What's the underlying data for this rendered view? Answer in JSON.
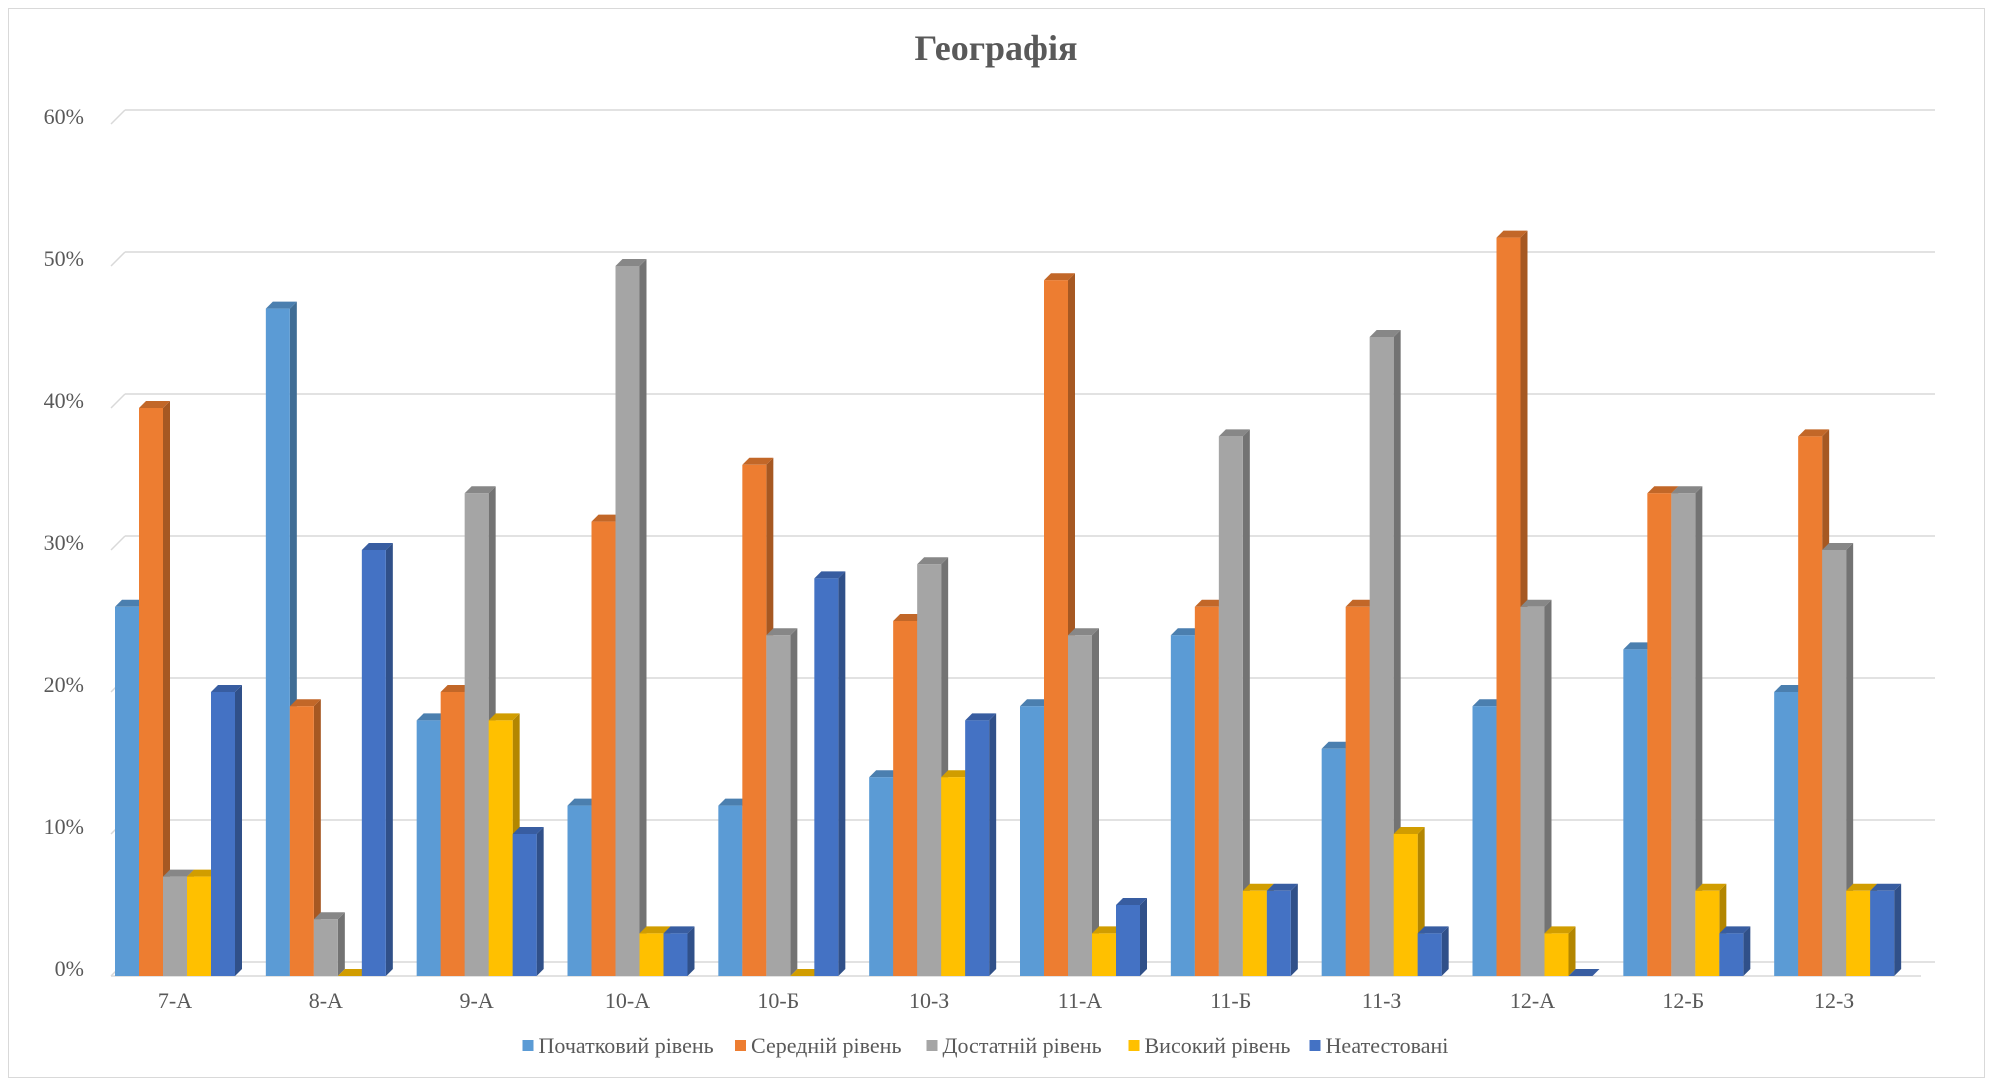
{
  "chart_data": {
    "type": "bar",
    "title": "Географія",
    "xlabel": "",
    "ylabel": "",
    "ylim": [
      0,
      60
    ],
    "y_tick_labels": [
      "0%",
      "10%",
      "20%",
      "30%",
      "40%",
      "50%",
      "60%"
    ],
    "y_ticks": [
      0,
      10,
      20,
      30,
      40,
      50,
      60
    ],
    "grid": true,
    "legend_position": "bottom",
    "categories": [
      "7-А",
      "8-А",
      "9-А",
      "10-А",
      "10-Б",
      "10-З",
      "11-А",
      "11-Б",
      "11-З",
      "12-А",
      "12-Б",
      "12-З"
    ],
    "series": [
      {
        "name": "Початковий рівень",
        "color": "#5B9BD5",
        "values": [
          26,
          47,
          18,
          12,
          12,
          14,
          19,
          24,
          16,
          19,
          23,
          20
        ]
      },
      {
        "name": "Середній рівень",
        "color": "#ED7D31",
        "values": [
          40,
          19,
          20,
          32,
          36,
          25,
          49,
          26,
          26,
          52,
          34,
          38
        ]
      },
      {
        "name": "Достатній рівень",
        "color": "#A5A5A5",
        "values": [
          7,
          4,
          34,
          50,
          24,
          29,
          24,
          38,
          45,
          26,
          34,
          30
        ]
      },
      {
        "name": "Високий рівень",
        "color": "#FFC000",
        "values": [
          7,
          0,
          18,
          3,
          0,
          14,
          3,
          6,
          10,
          3,
          6,
          6
        ]
      },
      {
        "name": "Неатестовані",
        "color": "#4472C4",
        "values": [
          20,
          30,
          10,
          3,
          28,
          18,
          5,
          6,
          3,
          0,
          3,
          6
        ]
      }
    ]
  }
}
